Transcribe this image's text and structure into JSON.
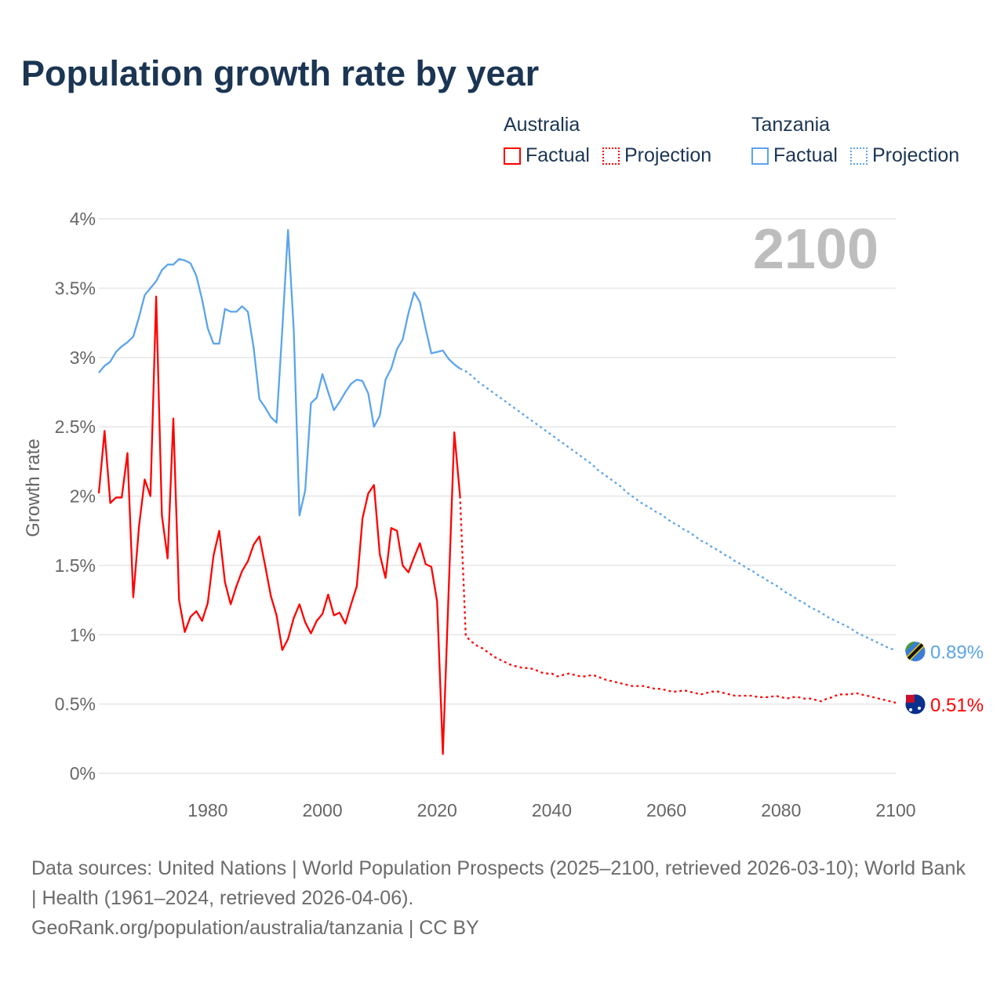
{
  "title": "Population growth rate by year",
  "legend": {
    "groups": [
      {
        "name": "Australia",
        "factual": "Factual",
        "projection": "Projection",
        "color": "#ff0000"
      },
      {
        "name": "Tanzania",
        "factual": "Factual",
        "projection": "Projection",
        "color": "#5ba4ea"
      }
    ]
  },
  "year_label": "2100",
  "footer": {
    "sources": "Data sources: United Nations | World Population Prospects (2025–2100, retrieved 2026-03-10); World Bank | Health (1961–2024, retrieved 2026-04-06).",
    "credit": "GeoRank.org/population/australia/tanzania | CC BY"
  },
  "chart_data": {
    "type": "line",
    "title": "Population growth rate by year",
    "xlabel": "",
    "ylabel": "Growth rate",
    "xlim": [
      1961,
      2100
    ],
    "ylim": [
      0,
      4
    ],
    "x_ticks": [
      1980,
      2000,
      2020,
      2040,
      2060,
      2080,
      2100
    ],
    "y_ticks": [
      0,
      0.5,
      1,
      1.5,
      2,
      2.5,
      3,
      3.5,
      4
    ],
    "y_tick_labels": [
      "0%",
      "0.5%",
      "1%",
      "1.5%",
      "2%",
      "2.5%",
      "3%",
      "3.5%",
      "4%"
    ],
    "x_tick_labels": [
      "1980",
      "2000",
      "2020",
      "2040",
      "2060",
      "2080",
      "2100"
    ],
    "grid": true,
    "legend_position": "top-right",
    "series": [
      {
        "name": "Australia",
        "color": "#ff0000",
        "end_label": "0.51%",
        "factual_start": 1961,
        "factual": [
          2.02,
          2.47,
          1.95,
          1.99,
          1.99,
          2.31,
          1.27,
          1.78,
          2.12,
          2.0,
          3.44,
          1.86,
          1.55,
          2.56,
          1.25,
          1.02,
          1.13,
          1.17,
          1.1,
          1.23,
          1.57,
          1.75,
          1.38,
          1.22,
          1.35,
          1.46,
          1.53,
          1.65,
          1.71,
          1.5,
          1.28,
          1.14,
          0.89,
          0.97,
          1.12,
          1.22,
          1.09,
          1.01,
          1.1,
          1.15,
          1.29,
          1.14,
          1.16,
          1.08,
          1.22,
          1.35,
          1.84,
          2.02,
          2.08,
          1.58,
          1.41,
          1.77,
          1.75,
          1.5,
          1.45,
          1.56,
          1.66,
          1.51,
          1.49,
          1.24,
          0.14,
          1.3,
          2.46,
          2.0
        ],
        "projection_start": 2025,
        "projection": [
          0.99,
          0.95,
          0.92,
          0.9,
          0.87,
          0.84,
          0.82,
          0.8,
          0.78,
          0.77,
          0.76,
          0.76,
          0.75,
          0.73,
          0.72,
          0.72,
          0.7,
          0.71,
          0.72,
          0.71,
          0.7,
          0.7,
          0.71,
          0.7,
          0.68,
          0.67,
          0.66,
          0.65,
          0.64,
          0.63,
          0.63,
          0.63,
          0.62,
          0.61,
          0.61,
          0.6,
          0.59,
          0.59,
          0.6,
          0.59,
          0.58,
          0.57,
          0.58,
          0.59,
          0.59,
          0.58,
          0.57,
          0.56,
          0.56,
          0.56,
          0.56,
          0.55,
          0.55,
          0.55,
          0.56,
          0.55,
          0.54,
          0.55,
          0.55,
          0.54,
          0.54,
          0.53,
          0.52,
          0.54,
          0.55,
          0.57,
          0.57,
          0.57,
          0.58,
          0.57,
          0.56,
          0.55,
          0.54,
          0.53,
          0.52,
          0.51
        ]
      },
      {
        "name": "Tanzania",
        "color": "#5ba4ea",
        "end_label": "0.89%",
        "factual_start": 1961,
        "factual": [
          2.89,
          2.94,
          2.97,
          3.04,
          3.08,
          3.11,
          3.15,
          3.29,
          3.45,
          3.5,
          3.55,
          3.63,
          3.67,
          3.67,
          3.71,
          3.7,
          3.68,
          3.59,
          3.42,
          3.21,
          3.1,
          3.1,
          3.35,
          3.33,
          3.33,
          3.37,
          3.33,
          3.07,
          2.7,
          2.64,
          2.57,
          2.53,
          3.2,
          3.92,
          3.2,
          1.86,
          2.04,
          2.67,
          2.71,
          2.88,
          2.75,
          2.62,
          2.68,
          2.75,
          2.81,
          2.84,
          2.83,
          2.74,
          2.5,
          2.58,
          2.84,
          2.92,
          3.06,
          3.13,
          3.32,
          3.47,
          3.4,
          3.21,
          3.03,
          3.04,
          3.05,
          2.99,
          2.95,
          2.92
        ],
        "projection_start": 2025,
        "projection": [
          2.9,
          2.87,
          2.83,
          2.8,
          2.77,
          2.74,
          2.71,
          2.68,
          2.65,
          2.62,
          2.59,
          2.56,
          2.53,
          2.5,
          2.47,
          2.44,
          2.41,
          2.38,
          2.35,
          2.32,
          2.29,
          2.26,
          2.23,
          2.19,
          2.16,
          2.13,
          2.1,
          2.07,
          2.03,
          2.0,
          1.97,
          1.94,
          1.92,
          1.89,
          1.87,
          1.84,
          1.81,
          1.79,
          1.76,
          1.74,
          1.71,
          1.68,
          1.66,
          1.63,
          1.61,
          1.58,
          1.56,
          1.53,
          1.51,
          1.48,
          1.46,
          1.43,
          1.41,
          1.38,
          1.36,
          1.33,
          1.3,
          1.28,
          1.25,
          1.23,
          1.2,
          1.18,
          1.16,
          1.13,
          1.11,
          1.09,
          1.07,
          1.05,
          1.02,
          1.0,
          0.98,
          0.96,
          0.94,
          0.92,
          0.9,
          0.89
        ]
      }
    ]
  }
}
